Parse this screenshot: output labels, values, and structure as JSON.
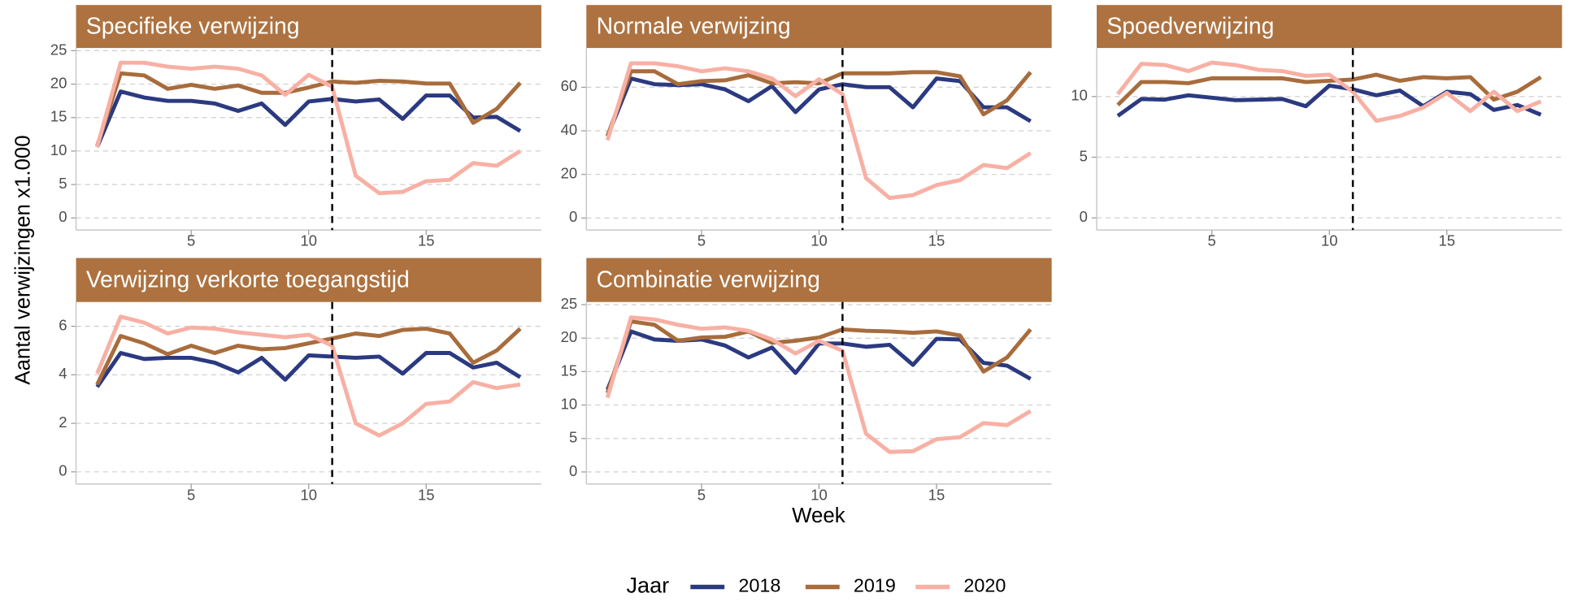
{
  "chart_data": [
    {
      "type": "line",
      "title": "Specifieke verwijzing",
      "x": [
        1,
        2,
        3,
        4,
        5,
        6,
        7,
        8,
        9,
        10,
        11,
        12,
        13,
        14,
        15,
        16,
        17,
        18,
        19
      ],
      "series": [
        {
          "name": "2018",
          "color": "#2b3a80",
          "values": [
            10.6,
            18.9,
            18,
            17.5,
            17.5,
            17.1,
            16,
            17.1,
            13.9,
            17.4,
            17.8,
            17.4,
            17.7,
            14.8,
            18.3,
            18.3,
            15,
            15.1,
            13
          ]
        },
        {
          "name": "2019",
          "color": "#a86c3c",
          "values": [
            10.8,
            21.6,
            21.3,
            19.3,
            19.9,
            19.3,
            19.8,
            18.7,
            18.7,
            19.5,
            20.4,
            20.2,
            20.5,
            20.4,
            20.1,
            20.1,
            14.2,
            16.3,
            20.2
          ]
        },
        {
          "name": "2020",
          "color": "#f8b0a4",
          "values": [
            10.6,
            23.2,
            23.2,
            22.6,
            22.3,
            22.6,
            22.3,
            21.3,
            18.4,
            21.4,
            19.6,
            6.3,
            3.7,
            3.9,
            5.5,
            5.7,
            8.2,
            7.8,
            10
          ]
        }
      ],
      "xlim": [
        0.1,
        19.9
      ],
      "ylim": [
        -1.8,
        25.4
      ],
      "xticks": [
        5,
        10,
        15
      ],
      "yticks": [
        0,
        5,
        10,
        15,
        20,
        25
      ],
      "vline": 11,
      "grid": true
    },
    {
      "type": "line",
      "title": "Normale verwijzing",
      "x": [
        1,
        2,
        3,
        4,
        5,
        6,
        7,
        8,
        9,
        10,
        11,
        12,
        13,
        14,
        15,
        16,
        17,
        18,
        19
      ],
      "series": [
        {
          "name": "2018",
          "color": "#2b3a80",
          "values": [
            37.6,
            64,
            61.4,
            61,
            61.4,
            59,
            53.6,
            60.5,
            48.6,
            59,
            61.4,
            60,
            60,
            50.8,
            64,
            62.8,
            50.8,
            50.8,
            44.4
          ]
        },
        {
          "name": "2019",
          "color": "#a86c3c",
          "values": [
            37.6,
            67.3,
            67.3,
            61.4,
            62.8,
            63.2,
            65.5,
            61.8,
            62.3,
            61.8,
            66.4,
            66.4,
            66.4,
            66.9,
            66.9,
            65,
            47.6,
            54,
            66.9
          ]
        },
        {
          "name": "2020",
          "color": "#f8b0a4",
          "values": [
            35.7,
            71,
            71,
            69.6,
            67.3,
            68.7,
            67.3,
            64,
            55.9,
            63.7,
            56.8,
            18.3,
            9.2,
            10.5,
            15.1,
            17.4,
            24.3,
            22.9,
            29.8
          ]
        }
      ],
      "xlim": [
        0.1,
        19.9
      ],
      "ylim": [
        -5.5,
        78
      ],
      "xticks": [
        5,
        10,
        15
      ],
      "yticks": [
        0,
        20,
        40,
        60
      ],
      "vline": 11,
      "grid": true
    },
    {
      "type": "line",
      "title": "Spoedverwijzing",
      "x": [
        1,
        2,
        3,
        4,
        5,
        6,
        7,
        8,
        9,
        10,
        11,
        12,
        13,
        14,
        15,
        16,
        17,
        18,
        19
      ],
      "series": [
        {
          "name": "2018",
          "color": "#2b3a80",
          "values": [
            8.4,
            9.8,
            9.75,
            10.1,
            9.9,
            9.7,
            9.75,
            9.8,
            9.2,
            10.9,
            10.6,
            10.1,
            10.5,
            9.2,
            10.4,
            10.2,
            8.9,
            9.3,
            8.5
          ]
        },
        {
          "name": "2019",
          "color": "#a86c3c",
          "values": [
            9.3,
            11.2,
            11.2,
            11.1,
            11.5,
            11.5,
            11.5,
            11.5,
            11.2,
            11.3,
            11.4,
            11.8,
            11.3,
            11.6,
            11.5,
            11.6,
            9.75,
            10.4,
            11.6
          ]
        },
        {
          "name": "2020",
          "color": "#f8b0a4",
          "values": [
            10.2,
            12.7,
            12.6,
            12.1,
            12.8,
            12.6,
            12.2,
            12.1,
            11.7,
            11.8,
            10.4,
            8,
            8.4,
            9.1,
            10.3,
            8.8,
            10.4,
            8.8,
            9.6
          ]
        }
      ],
      "xlim": [
        0.1,
        19.9
      ],
      "ylim": [
        -1,
        14
      ],
      "xticks": [
        5,
        10,
        15
      ],
      "yticks": [
        0,
        5,
        10
      ],
      "vline": 11,
      "grid": true
    },
    {
      "type": "line",
      "title": "Verwijzing verkorte toegangstijd",
      "x": [
        1,
        2,
        3,
        4,
        5,
        6,
        7,
        8,
        9,
        10,
        11,
        12,
        13,
        14,
        15,
        16,
        17,
        18,
        19
      ],
      "series": [
        {
          "name": "2018",
          "color": "#2b3a80",
          "values": [
            3.5,
            4.9,
            4.65,
            4.7,
            4.7,
            4.5,
            4.1,
            4.7,
            3.8,
            4.8,
            4.75,
            4.7,
            4.75,
            4.05,
            4.9,
            4.9,
            4.3,
            4.5,
            3.9
          ]
        },
        {
          "name": "2019",
          "color": "#a86c3c",
          "values": [
            3.6,
            5.6,
            5.3,
            4.85,
            5.2,
            4.9,
            5.2,
            5.05,
            5.1,
            5.3,
            5.5,
            5.7,
            5.6,
            5.85,
            5.9,
            5.7,
            4.5,
            5,
            5.9
          ]
        },
        {
          "name": "2020",
          "color": "#f8b0a4",
          "values": [
            4.05,
            6.4,
            6.15,
            5.7,
            5.95,
            5.9,
            5.75,
            5.65,
            5.55,
            5.65,
            5.2,
            2,
            1.5,
            2,
            2.8,
            2.9,
            3.7,
            3.45,
            3.6
          ]
        }
      ],
      "xlim": [
        0.1,
        19.9
      ],
      "ylim": [
        -0.5,
        7
      ],
      "xticks": [
        5,
        10,
        15
      ],
      "yticks": [
        0,
        2,
        4,
        6
      ],
      "vline": 11,
      "grid": true
    },
    {
      "type": "line",
      "title": "Combinatie verwijzing",
      "x": [
        1,
        2,
        3,
        4,
        5,
        6,
        7,
        8,
        9,
        10,
        11,
        12,
        13,
        14,
        15,
        16,
        17,
        18,
        19
      ],
      "series": [
        {
          "name": "2018",
          "color": "#2b3a80",
          "values": [
            12.3,
            21,
            19.8,
            19.6,
            19.8,
            18.9,
            17.1,
            18.6,
            14.8,
            19.2,
            19.2,
            18.7,
            19,
            16,
            19.9,
            19.8,
            16.3,
            15.9,
            13.9
          ]
        },
        {
          "name": "2019",
          "color": "#a86c3c",
          "values": [
            11.8,
            22.5,
            22,
            19.6,
            20.1,
            20.2,
            21,
            19.3,
            19.6,
            20.1,
            21.3,
            21.1,
            21,
            20.8,
            21,
            20.4,
            15,
            17.1,
            21.3
          ]
        },
        {
          "name": "2020",
          "color": "#f8b0a4",
          "values": [
            11.1,
            23.1,
            22.8,
            22,
            21.4,
            21.6,
            21.1,
            19.8,
            17.7,
            19.6,
            18.1,
            5.7,
            3,
            3.1,
            4.9,
            5.2,
            7.3,
            7,
            9.1
          ]
        }
      ],
      "xlim": [
        0.1,
        19.9
      ],
      "ylim": [
        -1.8,
        25.4
      ],
      "xticks": [
        5,
        10,
        15
      ],
      "yticks": [
        0,
        5,
        10,
        15,
        20,
        25
      ],
      "vline": 11,
      "grid": true
    }
  ],
  "shared": {
    "ylabel": "Aantal verwijzingen x1.000",
    "xlabel": "Week",
    "legend_title": "Jaar"
  }
}
